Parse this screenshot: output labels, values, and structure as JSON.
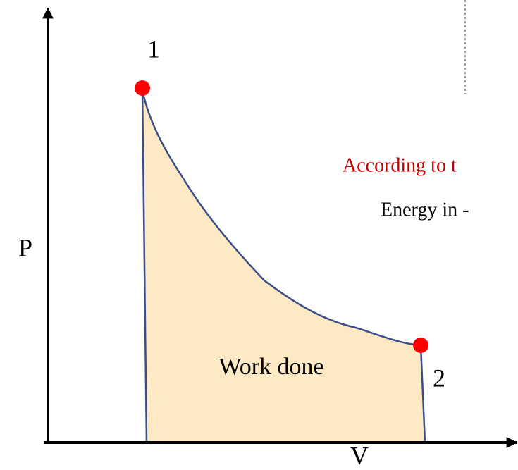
{
  "diagram": {
    "points": [
      {
        "label": "1"
      },
      {
        "label": "2"
      }
    ],
    "axes": {
      "y_label": "P",
      "x_label": "V"
    },
    "area_label": "Work done",
    "text_lines": [
      "According to t",
      "Energy in -"
    ]
  }
}
